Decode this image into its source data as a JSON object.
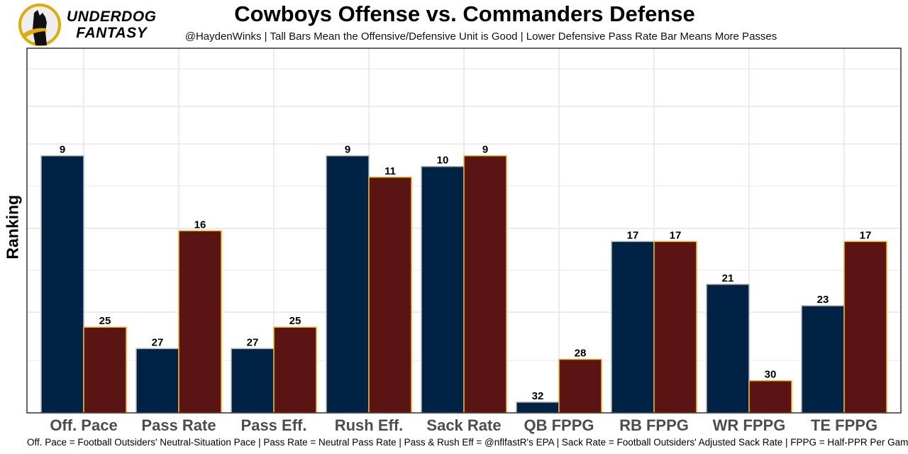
{
  "logo": {
    "text_line1": "UNDERDOG",
    "text_line2": "FANTASY"
  },
  "chart_data": {
    "type": "bar",
    "title": "Cowboys Offense vs. Commanders Defense",
    "subtitle": "@HaydenWinks | Tall Bars Mean the Offensive/Defensive Unit is Good | Lower Defensive Pass Rate Bar Means More Passes",
    "xlabel": "",
    "ylabel": "Ranking",
    "caption": "Off. Pace = Football Outsiders' Neutral-Situation Pace | Pass Rate = Neutral Pass Rate | Pass & Rush Eff = @nflfastR's EPA | Sack Rate = Football Outsiders' Adjusted Sack Rate | FPPG = Half-PPR Per Game",
    "categories": [
      "Off. Pace",
      "Pass Rate",
      "Pass Eff.",
      "Rush Eff.",
      "Sack Rate",
      "QB FPPG",
      "RB FPPG",
      "WR FPPG",
      "TE FPPG"
    ],
    "series": [
      {
        "values": [
          9,
          27,
          27,
          9,
          10,
          32,
          17,
          21,
          23
        ],
        "color": "#002244",
        "outline": "#b0b7bc"
      },
      {
        "values": [
          25,
          16,
          25,
          11,
          9,
          28,
          17,
          30,
          17
        ],
        "color": "#5a1414",
        "outline": "#ffb612"
      }
    ],
    "y_axis": "rank, reversed (1 = tallest)",
    "grid": true
  }
}
